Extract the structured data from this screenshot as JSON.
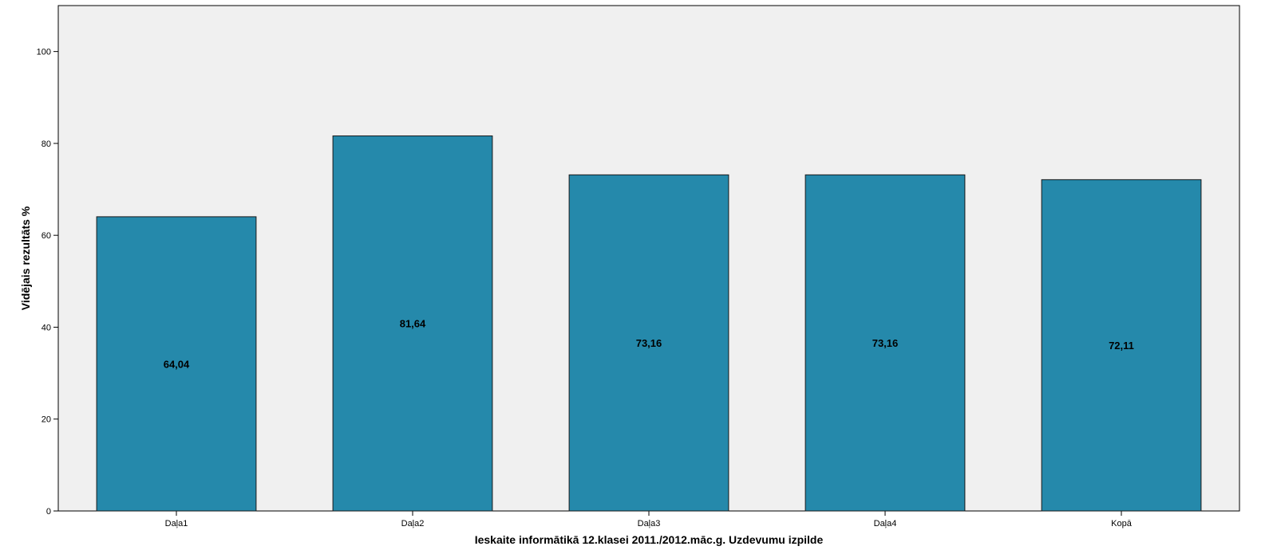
{
  "chart_data": {
    "type": "bar",
    "categories": [
      "Daļa1",
      "Daļa2",
      "Daļa3",
      "Daļa4",
      "Kopā"
    ],
    "values": [
      64.04,
      81.64,
      73.16,
      73.16,
      72.11
    ],
    "value_labels": [
      "64,04",
      "81,64",
      "73,16",
      "73,16",
      "72,11"
    ],
    "xlabel": "Ieskaite informātikā 12.klasei 2011./2012.māc.g. Uzdevumu izpilde",
    "ylabel": "Vidējais rezultāts %",
    "ylim": [
      0,
      110
    ],
    "yticks": [
      0,
      20,
      40,
      60,
      80,
      100
    ],
    "grid": false,
    "legend": "none"
  },
  "colors": {
    "bar_fill": "#2589ab",
    "bar_stroke": "#1a1a1a",
    "plot_background": "#f0f0f0"
  }
}
